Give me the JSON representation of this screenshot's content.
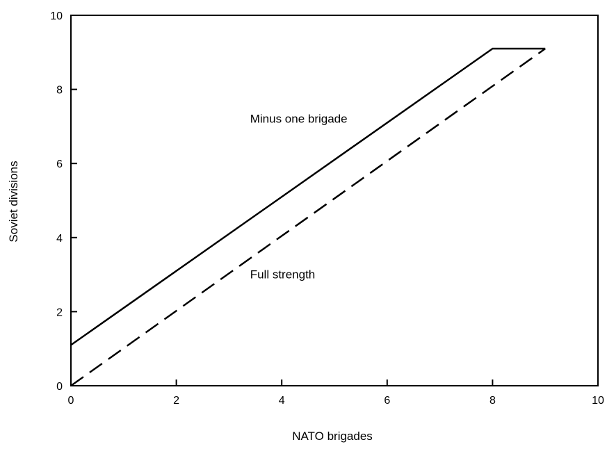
{
  "chart_data": {
    "type": "line",
    "title": "",
    "xlabel": "NATO brigades",
    "ylabel": "Soviet divisions",
    "xlim": [
      0,
      10
    ],
    "ylim": [
      0,
      10
    ],
    "xticks": [
      "0",
      "2",
      "4",
      "6",
      "8",
      "10"
    ],
    "yticks": [
      "0",
      "2",
      "4",
      "6",
      "8",
      "10"
    ],
    "grid": false,
    "legend": "none",
    "series": [
      {
        "style": "solid",
        "x": [
          0,
          8,
          9
        ],
        "y": [
          1.1,
          9.1,
          9.1
        ]
      },
      {
        "style": "dashed",
        "x": [
          0,
          9
        ],
        "y": [
          0,
          9.1
        ]
      }
    ],
    "annotations": [
      {
        "text": "Minus one brigade",
        "x": 3.4,
        "y": 7.1
      },
      {
        "text": "Full strength",
        "x": 3.4,
        "y": 2.9
      }
    ],
    "line_color": "#000000"
  }
}
